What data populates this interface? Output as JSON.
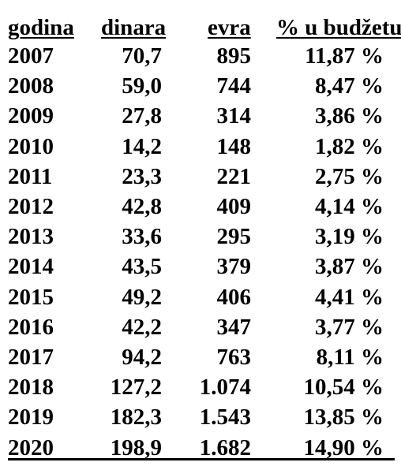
{
  "table": {
    "header": [
      "godina",
      "dinara",
      "evra",
      "% u budžetu"
    ],
    "rows": [
      [
        "2007",
        "70,7",
        "895",
        "11,87 %"
      ],
      [
        "2008",
        "59,0",
        "744",
        "8,47 %"
      ],
      [
        "2009",
        "27,8",
        "314",
        "3,86 %"
      ],
      [
        "2010",
        "14,2",
        "148",
        "1,82 %"
      ],
      [
        "2011",
        "23,3",
        "221",
        "2,75 %"
      ],
      [
        "2012",
        "42,8",
        "409",
        "4,14 %"
      ],
      [
        "2013",
        "33,6",
        "295",
        "3,19 %"
      ],
      [
        "2014",
        "43,5",
        "379",
        "3,87 %"
      ],
      [
        "2015",
        "49,2",
        "406",
        "4,41 %"
      ],
      [
        "2016",
        "42,2",
        "347",
        "3,77 %"
      ],
      [
        "2017",
        "94,2",
        "763",
        "8,11 %"
      ],
      [
        "2018",
        "127,2",
        "1.074",
        "10,54 %"
      ],
      [
        "2019",
        "182,3",
        "1.543",
        "13,85 %"
      ],
      [
        "2020",
        "198,9",
        "1.682",
        "14,90 %"
      ]
    ]
  }
}
